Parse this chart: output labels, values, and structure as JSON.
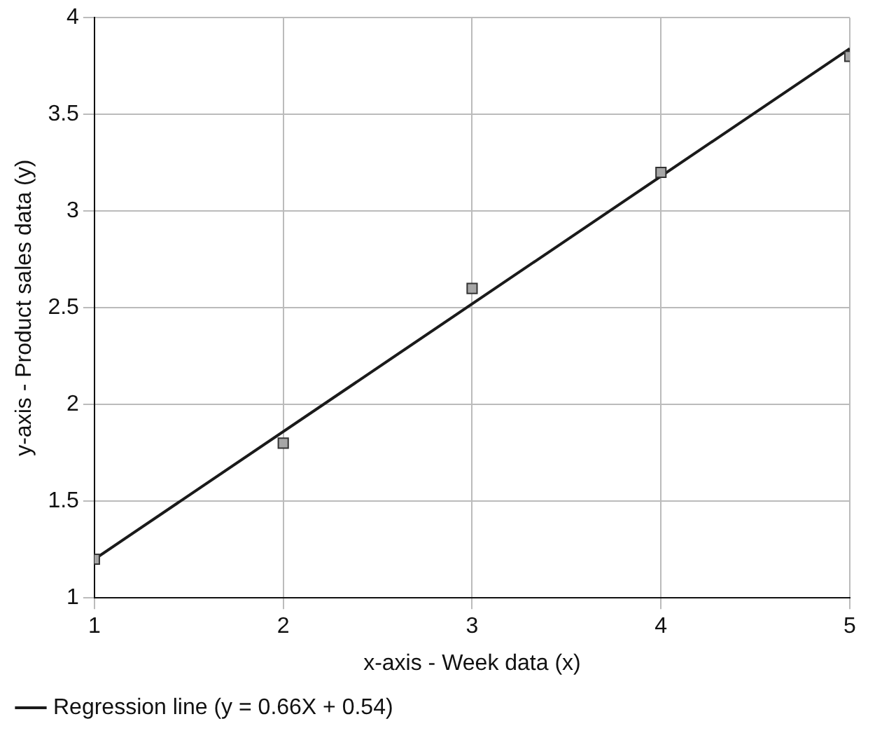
{
  "chart_data": {
    "type": "scatter",
    "xlabel": "x-axis - Week data (x)",
    "ylabel": "y-axis - Product sales data (y)",
    "x": [
      1,
      2,
      3,
      4,
      5
    ],
    "xlim": [
      1,
      5
    ],
    "xticks": [
      1,
      2,
      3,
      4,
      5
    ],
    "ylim": [
      1,
      4
    ],
    "yticks": [
      1,
      1.5,
      2,
      2.5,
      3,
      3.5,
      4
    ],
    "grid": true,
    "legend": "bottom left",
    "marker": "square",
    "series": [
      {
        "color": "#a6a6a6",
        "values": [
          1.2,
          1.8,
          2.6,
          3.2,
          3.8
        ]
      },
      {
        "type": "line",
        "name": "Regression line (y = 0.66X + 0.54)",
        "color": "#1a1a1a",
        "x": [
          1,
          5
        ],
        "values": [
          1.2,
          3.84
        ],
        "marker": "none",
        "line_style": "solid"
      }
    ]
  }
}
